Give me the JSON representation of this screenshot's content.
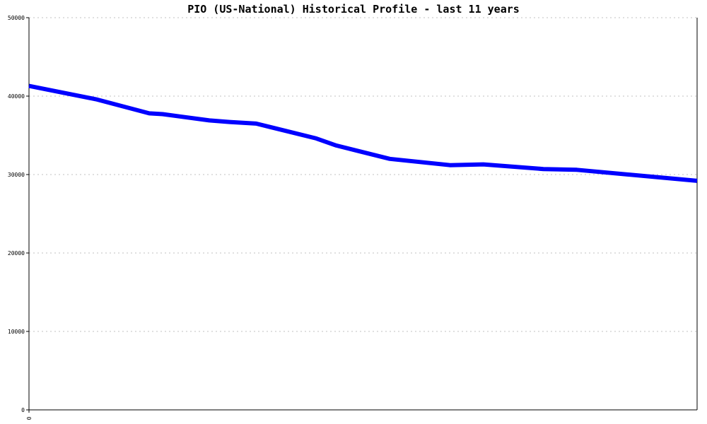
{
  "chart_data": {
    "type": "line",
    "title": "PIO (US-National) Historical Profile - last 11 years",
    "xlabel": "",
    "ylabel": "",
    "ylim": [
      0,
      50000
    ],
    "yticks": [
      0,
      10000,
      20000,
      30000,
      40000,
      50000
    ],
    "xtick_labels": [
      "0"
    ],
    "grid": true,
    "x": [
      0,
      0.1,
      0.18,
      0.2,
      0.27,
      0.3,
      0.34,
      0.43,
      0.46,
      0.54,
      0.63,
      0.68,
      0.77,
      0.82,
      1.0
    ],
    "series": [
      {
        "values": [
          41300,
          39600,
          37800,
          37700,
          36900,
          36700,
          36500,
          34600,
          33700,
          32000,
          31200,
          31300,
          30700,
          30600,
          29200
        ]
      }
    ],
    "colors": {
      "line": "#0000ff",
      "grid": "#c0c0c0",
      "axis": "#000000"
    }
  }
}
